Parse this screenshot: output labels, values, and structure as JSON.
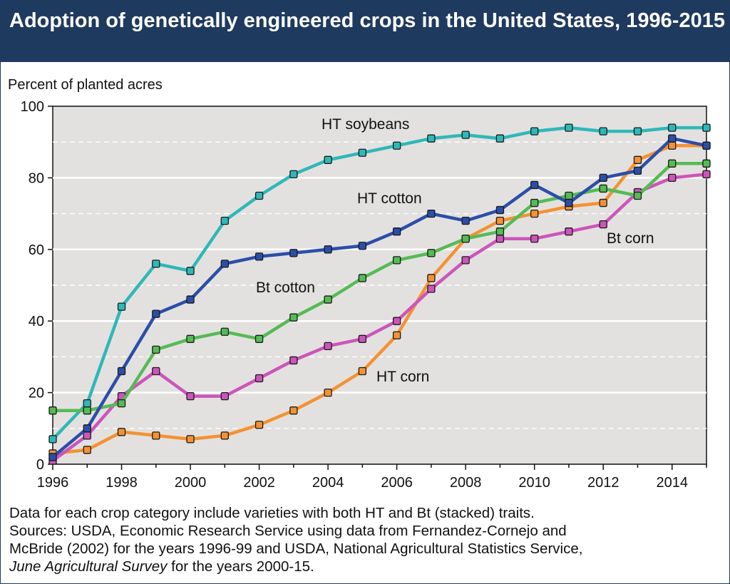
{
  "title": "Adoption of genetically engineered crops in the United States, 1996-2015",
  "notes": {
    "line1": "Data for each crop category include varieties with both HT and Bt (stacked) traits.",
    "line2": "Sources: USDA, Economic Research Service using data from Fernandez-Cornejo and",
    "line3": "McBride (2002) for the years 1996-99 and USDA, National Agricultural Statistics Service,",
    "line4_italic": "June Agricultural Survey",
    "line4_rest": " for the years 2000-15."
  },
  "chart_data": {
    "type": "line",
    "ylabel": "Percent of planted acres",
    "xlim": [
      1996,
      2015
    ],
    "ylim": [
      0,
      100
    ],
    "yticks": [
      0,
      20,
      40,
      60,
      80,
      100
    ],
    "xticks": [
      1996,
      1998,
      2000,
      2002,
      2004,
      2006,
      2008,
      2010,
      2012,
      2014
    ],
    "grid": true,
    "x": [
      1996,
      1997,
      1998,
      1999,
      2000,
      2001,
      2002,
      2003,
      2004,
      2005,
      2006,
      2007,
      2008,
      2009,
      2010,
      2011,
      2012,
      2013,
      2014,
      2015
    ],
    "series": [
      {
        "name": "HT soybeans",
        "color": "#2fb8b8",
        "values": [
          7,
          17,
          44,
          56,
          54,
          68,
          75,
          81,
          85,
          87,
          89,
          91,
          92,
          91,
          93,
          94,
          93,
          93,
          94,
          94
        ]
      },
      {
        "name": "HT cotton",
        "color": "#2b4ea8",
        "values": [
          2,
          10,
          26,
          42,
          46,
          56,
          58,
          59,
          60,
          61,
          65,
          70,
          68,
          71,
          78,
          73,
          80,
          82,
          91,
          89
        ]
      },
      {
        "name": "Bt cotton",
        "color": "#55bb55",
        "values": [
          15,
          15,
          17,
          32,
          35,
          37,
          35,
          41,
          46,
          52,
          57,
          59,
          63,
          65,
          73,
          75,
          77,
          75,
          84,
          84
        ]
      },
      {
        "name": "Bt corn",
        "color": "#cc55bb",
        "values": [
          1,
          8,
          19,
          26,
          19,
          19,
          24,
          29,
          33,
          35,
          40,
          49,
          57,
          63,
          63,
          65,
          67,
          76,
          80,
          81
        ]
      },
      {
        "name": "HT corn",
        "color": "#f39233",
        "values": [
          3,
          4,
          9,
          8,
          7,
          8,
          11,
          15,
          20,
          26,
          36,
          52,
          63,
          68,
          70,
          72,
          73,
          85,
          89,
          89
        ]
      }
    ]
  }
}
